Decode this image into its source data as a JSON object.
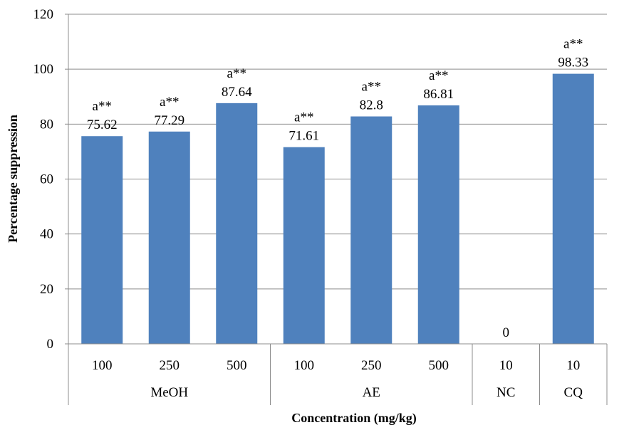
{
  "chart_data": {
    "type": "bar",
    "ylabel": "Percentage suppression",
    "xlabel": "Concentration  (mg/kg)",
    "ylim": [
      0,
      120
    ],
    "yticks": [
      0,
      20,
      40,
      60,
      80,
      100,
      120
    ],
    "grid": "horizontal",
    "bar_color": "#4F81BD",
    "groups": [
      {
        "name": "MeOH",
        "categories": [
          "100",
          "250",
          "500"
        ]
      },
      {
        "name": "AE",
        "categories": [
          "100",
          "250",
          "500"
        ]
      },
      {
        "name": "NC",
        "categories": [
          "10"
        ]
      },
      {
        "name": "CQ",
        "categories": [
          "10"
        ]
      }
    ],
    "categories": [
      "100",
      "250",
      "500",
      "100",
      "250",
      "500",
      "10",
      "10"
    ],
    "values": [
      75.62,
      77.29,
      87.64,
      71.61,
      82.8,
      86.81,
      0,
      98.33
    ],
    "value_labels": [
      "75.62",
      "77.29",
      "87.64",
      "71.61",
      "82.8",
      "86.81",
      "0",
      "98.33"
    ],
    "annotations": [
      "a**",
      "a**",
      "a**",
      "a**",
      "a**",
      "a**",
      "",
      "a**"
    ]
  }
}
